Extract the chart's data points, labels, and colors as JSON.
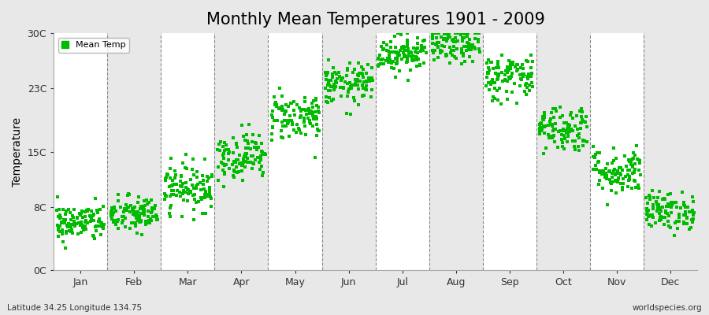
{
  "title": "Monthly Mean Temperatures 1901 - 2009",
  "ylabel": "Temperature",
  "bottom_left": "Latitude 34.25 Longitude 134.75",
  "bottom_right": "worldspecies.org",
  "legend_label": "Mean Temp",
  "month_labels": [
    "Jan",
    "Feb",
    "Mar",
    "Apr",
    "May",
    "Jun",
    "Jul",
    "Aug",
    "Sep",
    "Oct",
    "Nov",
    "Dec"
  ],
  "ytick_positions": [
    0,
    8,
    15,
    23,
    30
  ],
  "ytick_labels": [
    "0C",
    "8C",
    "15C",
    "23C",
    "30C"
  ],
  "ylim": [
    0,
    30
  ],
  "plot_bg_color": "#ffffff",
  "fig_bg_color": "#e8e8e8",
  "band_color": "#e8e8e8",
  "dot_color": "#00bb00",
  "mean_temps": [
    6.0,
    7.0,
    10.5,
    14.5,
    19.5,
    23.5,
    27.5,
    28.5,
    24.5,
    18.0,
    12.5,
    7.5
  ],
  "std_temps": [
    1.2,
    1.2,
    1.5,
    1.5,
    1.5,
    1.3,
    1.2,
    1.2,
    1.5,
    1.5,
    1.5,
    1.2
  ],
  "n_years": 109,
  "marker_size": 2.5,
  "title_fontsize": 15,
  "axis_fontsize": 10,
  "tick_fontsize": 9,
  "legend_fontsize": 8
}
